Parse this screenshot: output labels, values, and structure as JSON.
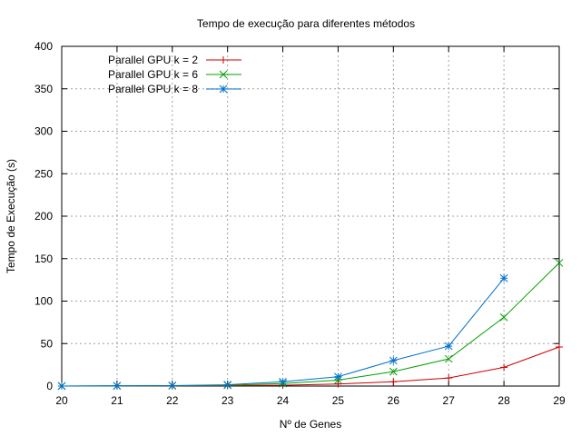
{
  "chart_data": {
    "type": "line",
    "title": "Tempo de execução para diferentes métodos",
    "xlabel": "Nº de Genes",
    "ylabel": "Tempo de Execução (s)",
    "xlim": [
      20,
      29
    ],
    "ylim": [
      0,
      400
    ],
    "x_ticks": [
      20,
      21,
      22,
      23,
      24,
      25,
      26,
      27,
      28,
      29
    ],
    "y_ticks": [
      0,
      50,
      100,
      150,
      200,
      250,
      300,
      350,
      400
    ],
    "grid": true,
    "legend_position": "top-left",
    "series": [
      {
        "name": "Parallel GPU k = 2",
        "color": "#cc0000",
        "marker": "plus",
        "x": [
          20,
          21,
          22,
          23,
          24,
          25,
          26,
          27,
          28,
          29
        ],
        "y": [
          0,
          0.1,
          0.2,
          0.5,
          1,
          2.5,
          5,
          9.5,
          22,
          46
        ]
      },
      {
        "name": "Parallel GPU k = 6",
        "color": "#00a000",
        "marker": "x",
        "x": [
          20,
          21,
          22,
          23,
          24,
          25,
          26,
          27,
          28,
          29
        ],
        "y": [
          0,
          0.2,
          0.4,
          1,
          3,
          7,
          17,
          32,
          81,
          145
        ]
      },
      {
        "name": "Parallel GPU k = 8",
        "color": "#0070cc",
        "marker": "star",
        "x": [
          20,
          21,
          22,
          23,
          24,
          25,
          26,
          27,
          28
        ],
        "y": [
          0,
          0.3,
          0.5,
          1.5,
          5,
          11,
          30,
          47,
          127
        ]
      }
    ]
  }
}
